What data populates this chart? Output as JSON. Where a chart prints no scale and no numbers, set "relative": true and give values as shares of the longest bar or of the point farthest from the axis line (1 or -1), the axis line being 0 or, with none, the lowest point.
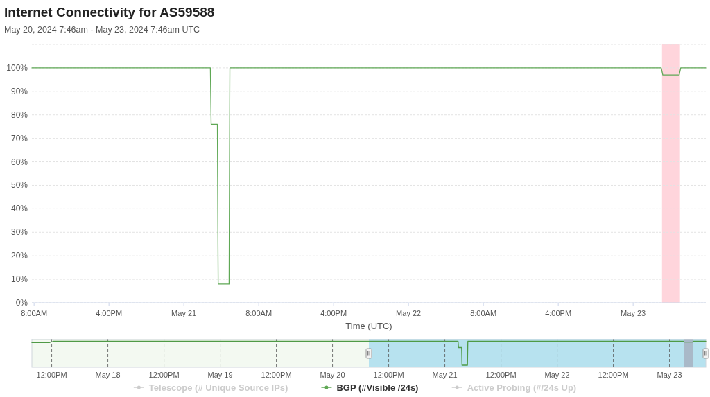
{
  "chart_data": [
    {
      "type": "line",
      "title": "Internet Connectivity for AS59588",
      "subtitle": "May 20, 2024 7:46am - May 23, 2024 7:46am UTC",
      "xlabel": "Time (UTC)",
      "x": [
        "2024-05-20T07:46",
        "2024-05-21T02:50",
        "2024-05-21T02:55",
        "2024-05-21T03:35",
        "2024-05-21T03:40",
        "2024-05-21T04:50",
        "2024-05-21T04:55",
        "2024-05-23T03:00",
        "2024-05-23T03:10",
        "2024-05-23T04:55",
        "2024-05-23T05:05",
        "2024-05-23T07:46"
      ],
      "series": [
        {
          "name": "Telescope (# Unique Source IPs)",
          "color": "#cccccc",
          "values": [
            null,
            null,
            null,
            null,
            null,
            null,
            null,
            null,
            null,
            null,
            null,
            null
          ]
        },
        {
          "name": "BGP (#Visible /24s)",
          "color": "#5fa855",
          "values": [
            100,
            100,
            76,
            76,
            8,
            8,
            100,
            100,
            97,
            97,
            100,
            100
          ]
        },
        {
          "name": "Active Probing (#/24s Up)",
          "color": "#cccccc",
          "values": [
            null,
            null,
            null,
            null,
            null,
            null,
            null,
            null,
            null,
            null,
            null,
            null
          ]
        }
      ],
      "xlim": [
        "2024-05-20T07:46",
        "2024-05-23T07:46"
      ],
      "xticks": [
        {
          "value": "2024-05-20T08:00",
          "label": "8:00AM"
        },
        {
          "value": "2024-05-20T16:00",
          "label": "4:00PM"
        },
        {
          "value": "2024-05-21T00:00",
          "label": "May 21"
        },
        {
          "value": "2024-05-21T08:00",
          "label": "8:00AM"
        },
        {
          "value": "2024-05-21T16:00",
          "label": "4:00PM"
        },
        {
          "value": "2024-05-22T00:00",
          "label": "May 22"
        },
        {
          "value": "2024-05-22T08:00",
          "label": "8:00AM"
        },
        {
          "value": "2024-05-22T16:00",
          "label": "4:00PM"
        },
        {
          "value": "2024-05-23T00:00",
          "label": "May 23"
        }
      ],
      "ylim": [
        0,
        110
      ],
      "yticks": [
        {
          "value": 0,
          "label": "0%"
        },
        {
          "value": 10,
          "label": "10%"
        },
        {
          "value": 20,
          "label": "20%"
        },
        {
          "value": 30,
          "label": "30%"
        },
        {
          "value": 40,
          "label": "40%"
        },
        {
          "value": 50,
          "label": "50%"
        },
        {
          "value": 60,
          "label": "60%"
        },
        {
          "value": 70,
          "label": "70%"
        },
        {
          "value": 80,
          "label": "80%"
        },
        {
          "value": 90,
          "label": "90%"
        },
        {
          "value": 100,
          "label": "100%"
        },
        {
          "value": 110,
          "label": null
        }
      ],
      "bands": [
        {
          "axis": "x",
          "from": "2024-05-23T03:05",
          "to": "2024-05-23T05:00",
          "color": "#ffd5dc"
        }
      ],
      "grid": "y",
      "legend": "bottom"
    },
    {
      "type": "line",
      "relative": true,
      "x": [
        "2024-05-17T07:46",
        "2024-05-17T11:30",
        "2024-05-17T12:20",
        "2024-05-21T02:50",
        "2024-05-21T02:55",
        "2024-05-21T03:35",
        "2024-05-21T03:40",
        "2024-05-21T04:50",
        "2024-05-21T04:55",
        "2024-05-23T03:00",
        "2024-05-23T03:10",
        "2024-05-23T04:55",
        "2024-05-23T05:05",
        "2024-05-23T07:46"
      ],
      "series": [
        {
          "color": "#4f9a46",
          "values": [
            0.95,
            0.95,
            1,
            1,
            0.76,
            0.76,
            0.08,
            0.08,
            1,
            1,
            0.97,
            0.97,
            1,
            1
          ]
        }
      ],
      "xlim": [
        "2024-05-17T07:46",
        "2024-05-23T07:46"
      ],
      "xticks": [
        {
          "value": "2024-05-17T12:00",
          "label": "12:00PM"
        },
        {
          "value": "2024-05-18T00:00",
          "label": "May 18"
        },
        {
          "value": "2024-05-18T12:00",
          "label": "12:00PM"
        },
        {
          "value": "2024-05-19T00:00",
          "label": "May 19"
        },
        {
          "value": "2024-05-19T12:00",
          "label": "12:00PM"
        },
        {
          "value": "2024-05-20T00:00",
          "label": "May 20"
        },
        {
          "value": "2024-05-20T12:00",
          "label": "12:00PM"
        },
        {
          "value": "2024-05-21T00:00",
          "label": "May 21"
        },
        {
          "value": "2024-05-21T12:00",
          "label": "12:00PM"
        },
        {
          "value": "2024-05-22T00:00",
          "label": "May 22"
        },
        {
          "value": "2024-05-22T12:00",
          "label": "12:00PM"
        },
        {
          "value": "2024-05-23T00:00",
          "label": "May 23"
        }
      ],
      "bands": [
        {
          "axis": "x",
          "from": "2024-05-20T07:46",
          "to": "2024-05-23T07:46",
          "color": "#b7e2ef"
        },
        {
          "axis": "x",
          "from": "2024-05-23T03:05",
          "to": "2024-05-23T05:00",
          "color": "#a9b9c8"
        }
      ],
      "grid": "x"
    }
  ]
}
